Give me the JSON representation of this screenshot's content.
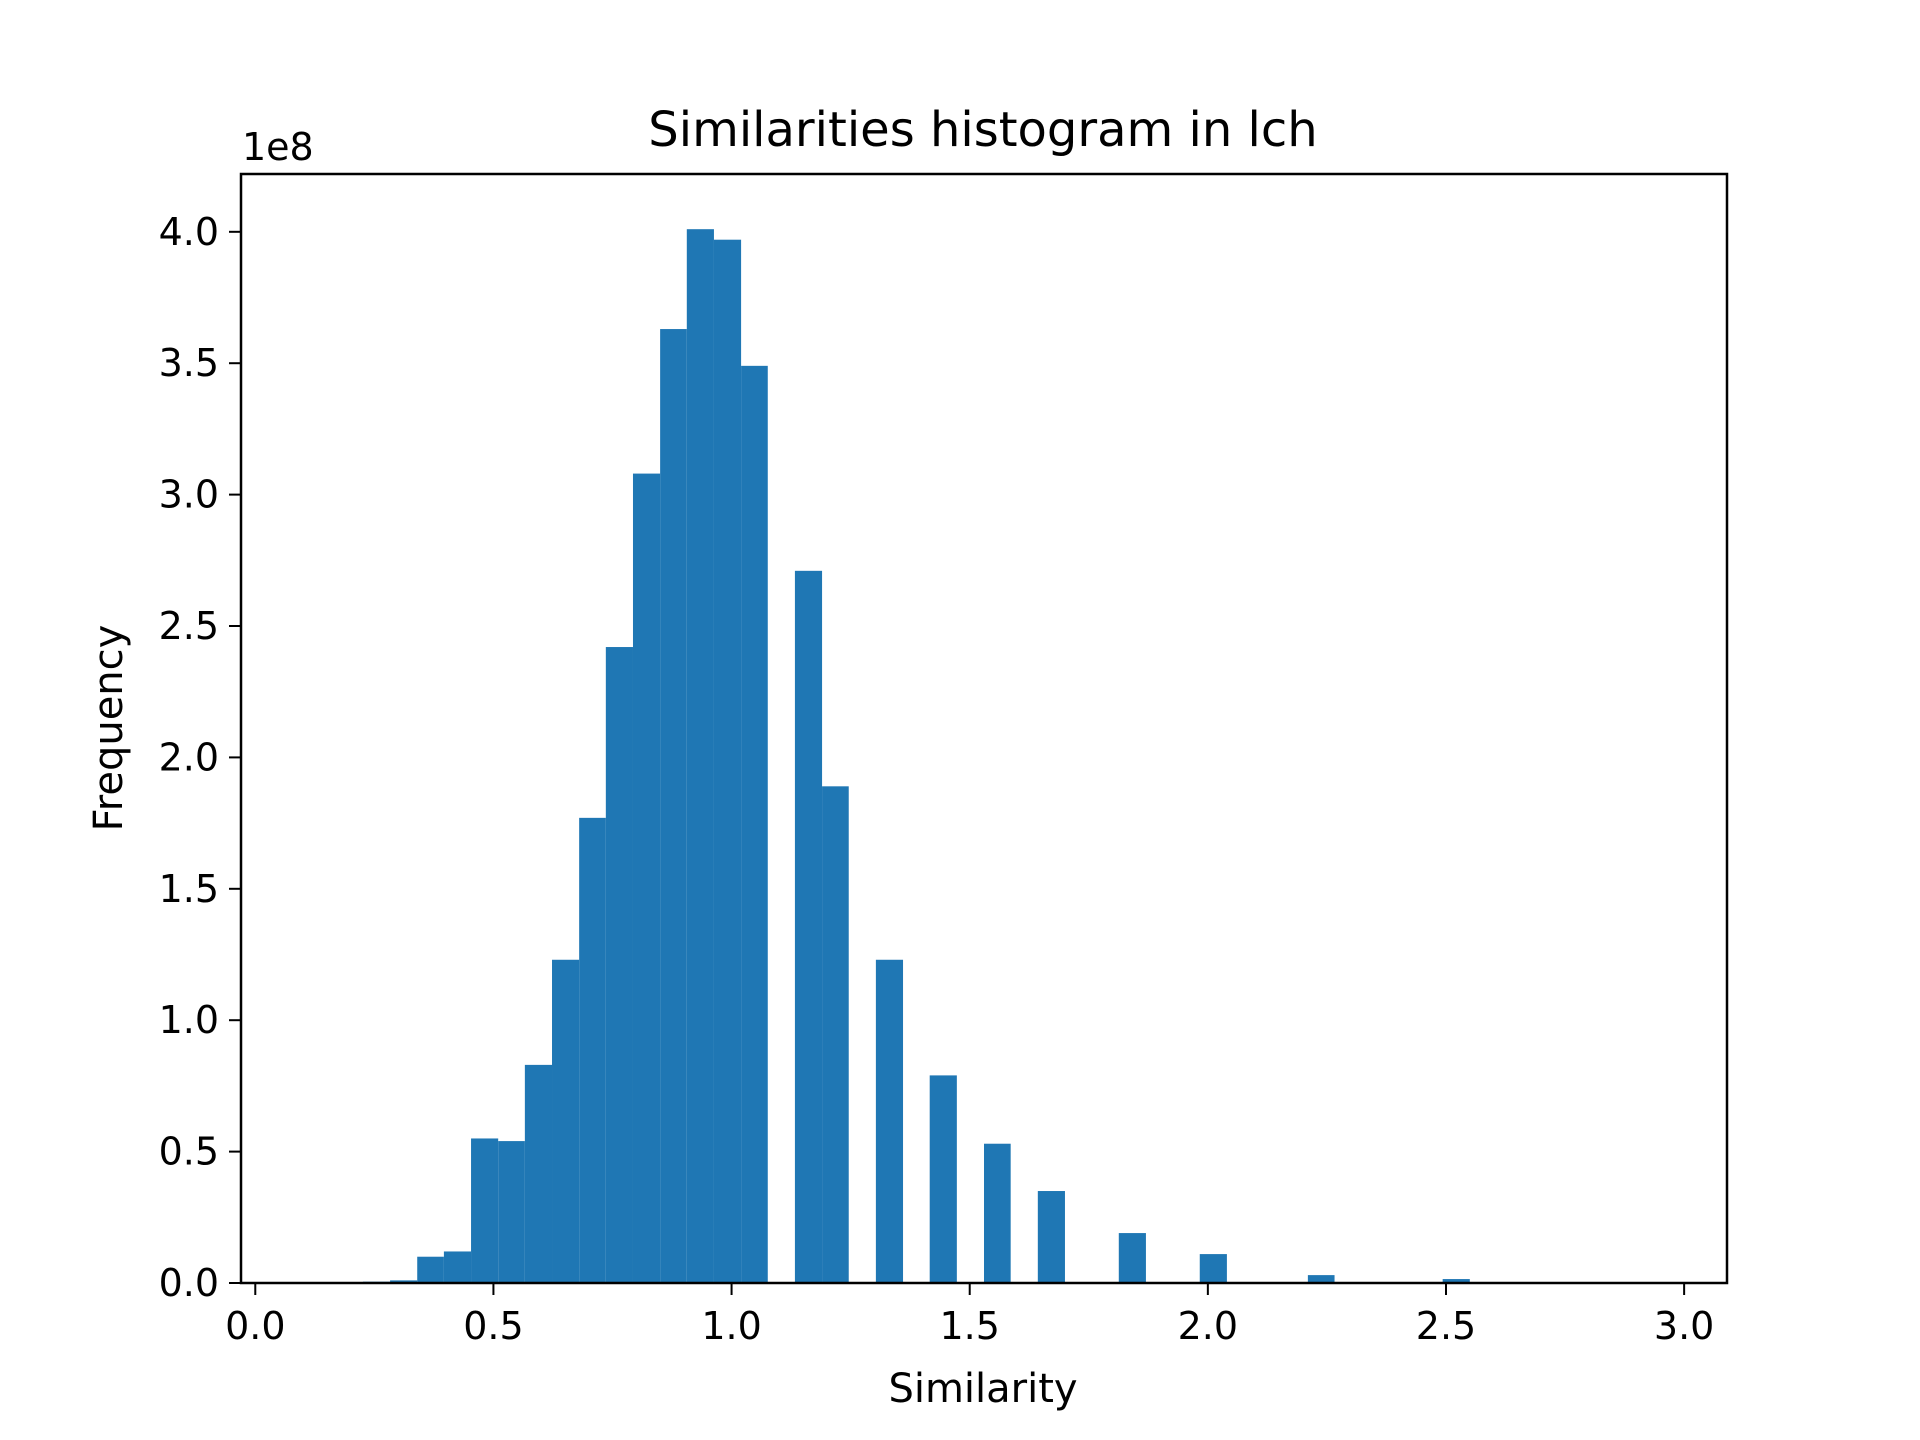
{
  "colors": {
    "bar": "#1f77b4",
    "axes": "#000000",
    "background": "#ffffff"
  },
  "chart_data": {
    "type": "bar",
    "title": "Similarities histogram in lch",
    "xlabel": "Similarity",
    "ylabel": "Frequency",
    "y_offset_label": "1e8",
    "y_scale": 100000000,
    "xlim": [
      -0.03,
      3.09
    ],
    "ylim": [
      0,
      4.22
    ],
    "grid": false,
    "legend": "none",
    "x_ticks": [
      {
        "value": 0.0,
        "label": "0.0"
      },
      {
        "value": 0.5,
        "label": "0.5"
      },
      {
        "value": 1.0,
        "label": "1.0"
      },
      {
        "value": 1.5,
        "label": "1.5"
      },
      {
        "value": 2.0,
        "label": "2.0"
      },
      {
        "value": 2.5,
        "label": "2.5"
      },
      {
        "value": 3.0,
        "label": "3.0"
      }
    ],
    "y_ticks": [
      {
        "value": 0.0,
        "label": "0.0"
      },
      {
        "value": 0.5,
        "label": "0.5"
      },
      {
        "value": 1.0,
        "label": "1.0"
      },
      {
        "value": 1.5,
        "label": "1.5"
      },
      {
        "value": 2.0,
        "label": "2.0"
      },
      {
        "value": 2.5,
        "label": "2.5"
      },
      {
        "value": 3.0,
        "label": "3.0"
      },
      {
        "value": 3.5,
        "label": "3.5"
      },
      {
        "value": 4.0,
        "label": "4.0"
      }
    ],
    "bins": [
      {
        "x0": 0.226,
        "x1": 0.283,
        "value": 0.005
      },
      {
        "x0": 0.283,
        "x1": 0.34,
        "value": 0.01
      },
      {
        "x0": 0.34,
        "x1": 0.396,
        "value": 0.1
      },
      {
        "x0": 0.396,
        "x1": 0.453,
        "value": 0.12
      },
      {
        "x0": 0.453,
        "x1": 0.51,
        "value": 0.55
      },
      {
        "x0": 0.51,
        "x1": 0.566,
        "value": 0.54
      },
      {
        "x0": 0.566,
        "x1": 0.623,
        "value": 0.83
      },
      {
        "x0": 0.623,
        "x1": 0.68,
        "value": 1.23
      },
      {
        "x0": 0.68,
        "x1": 0.736,
        "value": 1.77
      },
      {
        "x0": 0.736,
        "x1": 0.793,
        "value": 2.42
      },
      {
        "x0": 0.793,
        "x1": 0.85,
        "value": 3.08
      },
      {
        "x0": 0.85,
        "x1": 0.906,
        "value": 3.63
      },
      {
        "x0": 0.906,
        "x1": 0.963,
        "value": 4.01
      },
      {
        "x0": 0.963,
        "x1": 1.02,
        "value": 3.97
      },
      {
        "x0": 1.02,
        "x1": 1.076,
        "value": 3.49
      },
      {
        "x0": 1.133,
        "x1": 1.19,
        "value": 2.71
      },
      {
        "x0": 1.19,
        "x1": 1.246,
        "value": 1.89
      },
      {
        "x0": 1.303,
        "x1": 1.36,
        "value": 1.23
      },
      {
        "x0": 1.416,
        "x1": 1.473,
        "value": 0.79
      },
      {
        "x0": 1.53,
        "x1": 1.586,
        "value": 0.53
      },
      {
        "x0": 1.643,
        "x1": 1.7,
        "value": 0.35
      },
      {
        "x0": 1.813,
        "x1": 1.87,
        "value": 0.19
      },
      {
        "x0": 1.983,
        "x1": 2.04,
        "value": 0.11
      },
      {
        "x0": 2.21,
        "x1": 2.266,
        "value": 0.03
      },
      {
        "x0": 2.493,
        "x1": 2.55,
        "value": 0.015
      }
    ]
  }
}
